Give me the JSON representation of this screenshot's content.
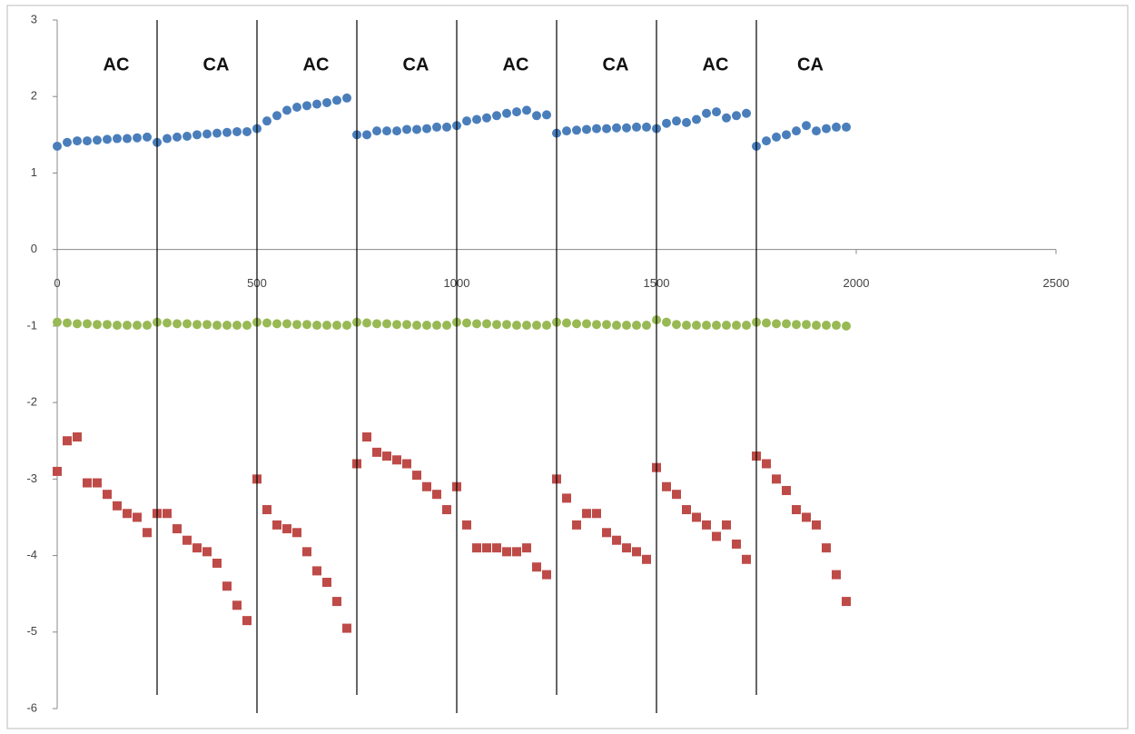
{
  "chart_data": {
    "type": "scatter",
    "xlim": [
      0,
      2500
    ],
    "xticks": [
      0,
      500,
      1000,
      1500,
      2000,
      2500
    ],
    "ylim": [
      -6,
      3
    ],
    "yticks": [
      -6,
      -5,
      -4,
      -3,
      -2,
      -1,
      0,
      1,
      2,
      3
    ],
    "grid": false,
    "separators": [
      250,
      500,
      750,
      1000,
      1250,
      1500,
      1750
    ],
    "annotations": [
      "AC",
      "CA",
      "AC",
      "CA",
      "AC",
      "CA",
      "AC",
      "CA"
    ],
    "x": [
      0,
      25,
      50,
      75,
      100,
      125,
      150,
      175,
      200,
      225,
      250,
      275,
      300,
      325,
      350,
      375,
      400,
      425,
      450,
      475,
      500,
      525,
      550,
      575,
      600,
      625,
      650,
      675,
      700,
      725,
      750,
      775,
      800,
      825,
      850,
      875,
      900,
      925,
      950,
      975,
      1000,
      1025,
      1050,
      1075,
      1100,
      1125,
      1150,
      1175,
      1200,
      1225,
      1250,
      1275,
      1300,
      1325,
      1350,
      1375,
      1400,
      1425,
      1450,
      1475,
      1500,
      1525,
      1550,
      1575,
      1600,
      1625,
      1650,
      1675,
      1700,
      1725,
      1750,
      1775,
      1800,
      1825,
      1850,
      1875,
      1900,
      1925,
      1950,
      1975
    ],
    "series": [
      {
        "color": "#4a7ebb",
        "marker": "circle",
        "values": [
          1.35,
          1.4,
          1.42,
          1.42,
          1.43,
          1.44,
          1.45,
          1.45,
          1.46,
          1.47,
          1.4,
          1.45,
          1.47,
          1.48,
          1.5,
          1.51,
          1.52,
          1.53,
          1.54,
          1.54,
          1.58,
          1.68,
          1.75,
          1.82,
          1.86,
          1.88,
          1.9,
          1.92,
          1.95,
          1.98,
          1.5,
          1.5,
          1.55,
          1.55,
          1.55,
          1.57,
          1.57,
          1.58,
          1.6,
          1.6,
          1.62,
          1.68,
          1.7,
          1.72,
          1.75,
          1.78,
          1.8,
          1.82,
          1.75,
          1.76,
          1.52,
          1.55,
          1.56,
          1.57,
          1.58,
          1.58,
          1.59,
          1.59,
          1.6,
          1.6,
          1.58,
          1.65,
          1.68,
          1.66,
          1.7,
          1.78,
          1.8,
          1.72,
          1.75,
          1.78,
          1.35,
          1.42,
          1.47,
          1.5,
          1.55,
          1.62,
          1.55,
          1.58,
          1.6,
          1.6
        ]
      },
      {
        "color": "#98b954",
        "marker": "circle",
        "values": [
          -0.95,
          -0.96,
          -0.97,
          -0.97,
          -0.98,
          -0.98,
          -0.99,
          -0.99,
          -0.99,
          -0.99,
          -0.95,
          -0.96,
          -0.97,
          -0.97,
          -0.98,
          -0.98,
          -0.99,
          -0.99,
          -0.99,
          -0.99,
          -0.95,
          -0.96,
          -0.97,
          -0.97,
          -0.98,
          -0.98,
          -0.99,
          -0.99,
          -0.99,
          -0.99,
          -0.95,
          -0.96,
          -0.97,
          -0.97,
          -0.98,
          -0.98,
          -0.99,
          -0.99,
          -0.99,
          -0.99,
          -0.95,
          -0.96,
          -0.97,
          -0.97,
          -0.98,
          -0.98,
          -0.99,
          -0.99,
          -0.99,
          -0.99,
          -0.95,
          -0.96,
          -0.97,
          -0.97,
          -0.98,
          -0.98,
          -0.99,
          -0.99,
          -0.99,
          -0.99,
          -0.92,
          -0.95,
          -0.98,
          -0.99,
          -0.99,
          -0.99,
          -0.99,
          -0.99,
          -0.99,
          -0.99,
          -0.95,
          -0.96,
          -0.97,
          -0.97,
          -0.98,
          -0.98,
          -0.99,
          -0.99,
          -0.99,
          -1.0
        ]
      },
      {
        "color": "#be4b48",
        "marker": "square",
        "values": [
          -2.9,
          -2.5,
          -2.45,
          -3.05,
          -3.05,
          -3.2,
          -3.35,
          -3.45,
          -3.5,
          -3.7,
          -3.45,
          -3.45,
          -3.65,
          -3.8,
          -3.9,
          -3.95,
          -4.1,
          -4.4,
          -4.65,
          -4.85,
          -3.0,
          -3.4,
          -3.6,
          -3.65,
          -3.7,
          -3.95,
          -4.2,
          -4.35,
          -4.6,
          -4.95,
          -2.8,
          -2.45,
          -2.65,
          -2.7,
          -2.75,
          -2.8,
          -2.95,
          -3.1,
          -3.2,
          -3.4,
          -3.1,
          -3.6,
          -3.9,
          -3.9,
          -3.9,
          -3.95,
          -3.95,
          -3.9,
          -4.15,
          -4.25,
          -3.0,
          -3.25,
          -3.6,
          -3.45,
          -3.45,
          -3.7,
          -3.8,
          -3.9,
          -3.95,
          -4.05,
          -2.85,
          -3.1,
          -3.2,
          -3.4,
          -3.5,
          -3.6,
          -3.75,
          -3.6,
          -3.85,
          -4.05,
          -2.7,
          -2.8,
          -3.0,
          -3.15,
          -3.4,
          -3.5,
          -3.6,
          -3.9,
          -4.25,
          -4.6
        ]
      }
    ]
  }
}
